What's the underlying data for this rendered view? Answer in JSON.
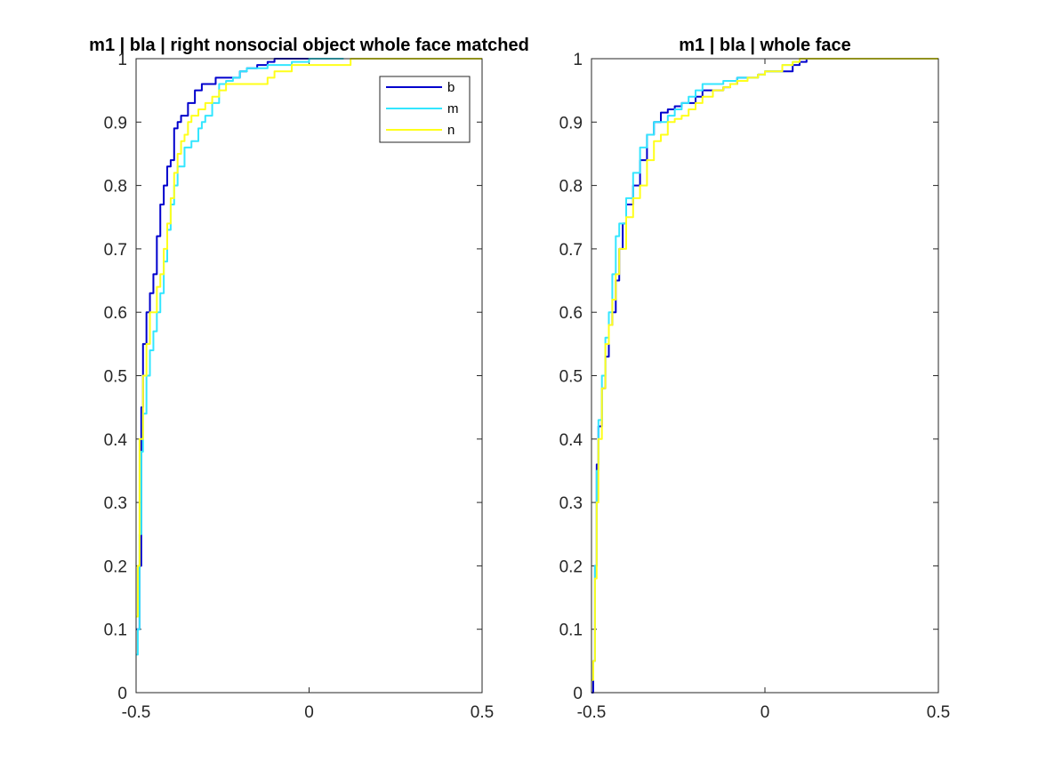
{
  "chart_data": [
    {
      "type": "line",
      "title": "m1 | bla | right nonsocial object whole face matched",
      "xlim": [
        -0.5,
        0.5
      ],
      "ylim": [
        0,
        1
      ],
      "xticks": [
        -0.5,
        0,
        0.5
      ],
      "xtick_labels": [
        "-0.5",
        "0",
        "0.5"
      ],
      "yticks": [
        0,
        0.1,
        0.2,
        0.3,
        0.4,
        0.5,
        0.6,
        0.7,
        0.8,
        0.9,
        1
      ],
      "ytick_labels": [
        "0",
        "0.1",
        "0.2",
        "0.3",
        "0.4",
        "0.5",
        "0.6",
        "0.7",
        "0.8",
        "0.9",
        "1"
      ],
      "grid": false,
      "legend": {
        "placement": "top-right",
        "entries": [
          "b",
          "m",
          "n"
        ]
      },
      "series": [
        {
          "name": "b",
          "color": "#0000cd",
          "x": [
            -0.5,
            -0.49,
            -0.485,
            -0.48,
            -0.47,
            -0.46,
            -0.45,
            -0.44,
            -0.43,
            -0.42,
            -0.41,
            -0.4,
            -0.39,
            -0.38,
            -0.37,
            -0.35,
            -0.33,
            -0.31,
            -0.29,
            -0.27,
            -0.24,
            -0.2,
            -0.18,
            -0.15,
            -0.12,
            -0.1,
            -0.05,
            0.0,
            0.02,
            0.04
          ],
          "y": [
            0.1,
            0.2,
            0.45,
            0.55,
            0.6,
            0.63,
            0.66,
            0.72,
            0.77,
            0.8,
            0.83,
            0.84,
            0.89,
            0.9,
            0.91,
            0.93,
            0.95,
            0.96,
            0.96,
            0.97,
            0.97,
            0.98,
            0.985,
            0.99,
            0.995,
            1.0,
            1.0,
            1.0,
            1.0,
            1.0
          ]
        },
        {
          "name": "m",
          "color": "#33e6ff",
          "x": [
            -0.5,
            -0.495,
            -0.49,
            -0.485,
            -0.48,
            -0.47,
            -0.46,
            -0.45,
            -0.44,
            -0.43,
            -0.42,
            -0.41,
            -0.4,
            -0.39,
            -0.38,
            -0.36,
            -0.34,
            -0.32,
            -0.31,
            -0.3,
            -0.28,
            -0.26,
            -0.24,
            -0.22,
            -0.2,
            -0.18,
            -0.15,
            -0.12,
            -0.1,
            -0.05,
            0.0,
            0.05,
            0.08,
            0.1
          ],
          "y": [
            0.06,
            0.1,
            0.25,
            0.38,
            0.44,
            0.5,
            0.54,
            0.57,
            0.6,
            0.63,
            0.68,
            0.73,
            0.77,
            0.8,
            0.83,
            0.86,
            0.87,
            0.89,
            0.9,
            0.91,
            0.93,
            0.96,
            0.965,
            0.97,
            0.98,
            0.985,
            0.985,
            0.99,
            0.99,
            0.995,
            1.0,
            1.0,
            1.0,
            1.0
          ]
        },
        {
          "name": "n",
          "color": "#ffff1a",
          "x": [
            -0.5,
            -0.495,
            -0.49,
            -0.48,
            -0.47,
            -0.46,
            -0.44,
            -0.43,
            -0.42,
            -0.41,
            -0.4,
            -0.39,
            -0.38,
            -0.37,
            -0.36,
            -0.35,
            -0.34,
            -0.32,
            -0.3,
            -0.28,
            -0.26,
            -0.24,
            -0.22,
            -0.2,
            -0.18,
            -0.15,
            -0.12,
            -0.1,
            -0.08,
            -0.05,
            0.0,
            0.05,
            0.1,
            0.12,
            0.5
          ],
          "y": [
            0.12,
            0.2,
            0.4,
            0.5,
            0.55,
            0.6,
            0.64,
            0.66,
            0.7,
            0.74,
            0.78,
            0.82,
            0.85,
            0.87,
            0.88,
            0.9,
            0.91,
            0.92,
            0.93,
            0.94,
            0.95,
            0.96,
            0.96,
            0.96,
            0.96,
            0.96,
            0.97,
            0.98,
            0.98,
            0.99,
            0.99,
            0.99,
            0.99,
            1.0,
            1.0
          ]
        }
      ]
    },
    {
      "type": "line",
      "title": "m1 | bla | whole face",
      "xlim": [
        -0.5,
        0.5
      ],
      "ylim": [
        0,
        1
      ],
      "xticks": [
        -0.5,
        0,
        0.5
      ],
      "xtick_labels": [
        "-0.5",
        "0",
        "0.5"
      ],
      "yticks": [
        0,
        0.1,
        0.2,
        0.3,
        0.4,
        0.5,
        0.6,
        0.7,
        0.8,
        0.9,
        1
      ],
      "ytick_labels": [
        "0",
        "0.1",
        "0.2",
        "0.3",
        "0.4",
        "0.5",
        "0.6",
        "0.7",
        "0.8",
        "0.9",
        "1"
      ],
      "grid": false,
      "series": [
        {
          "name": "b",
          "color": "#0000cd",
          "x": [
            -0.5,
            -0.495,
            -0.49,
            -0.485,
            -0.48,
            -0.47,
            -0.46,
            -0.45,
            -0.44,
            -0.43,
            -0.42,
            -0.41,
            -0.4,
            -0.38,
            -0.36,
            -0.34,
            -0.32,
            -0.3,
            -0.28,
            -0.26,
            -0.24,
            -0.22,
            -0.2,
            -0.18,
            -0.15,
            -0.12,
            -0.1,
            -0.08,
            -0.05,
            -0.02,
            0.0,
            0.05,
            0.08,
            0.1,
            0.12
          ],
          "y": [
            0.0,
            0.05,
            0.2,
            0.36,
            0.42,
            0.48,
            0.53,
            0.58,
            0.6,
            0.65,
            0.7,
            0.74,
            0.77,
            0.8,
            0.84,
            0.88,
            0.9,
            0.915,
            0.92,
            0.925,
            0.93,
            0.93,
            0.94,
            0.95,
            0.95,
            0.955,
            0.96,
            0.97,
            0.97,
            0.975,
            0.98,
            0.98,
            0.99,
            0.995,
            1.0
          ]
        },
        {
          "name": "m",
          "color": "#33e6ff",
          "x": [
            -0.5,
            -0.495,
            -0.49,
            -0.485,
            -0.48,
            -0.47,
            -0.46,
            -0.45,
            -0.44,
            -0.43,
            -0.42,
            -0.4,
            -0.38,
            -0.36,
            -0.34,
            -0.32,
            -0.3,
            -0.28,
            -0.26,
            -0.24,
            -0.22,
            -0.2,
            -0.18,
            -0.15,
            -0.12,
            -0.1,
            -0.08,
            -0.05,
            -0.02,
            0.0,
            0.05,
            0.08,
            0.1
          ],
          "y": [
            0.02,
            0.05,
            0.2,
            0.35,
            0.43,
            0.5,
            0.56,
            0.6,
            0.66,
            0.72,
            0.74,
            0.78,
            0.82,
            0.86,
            0.88,
            0.9,
            0.9,
            0.91,
            0.92,
            0.93,
            0.94,
            0.95,
            0.96,
            0.96,
            0.965,
            0.965,
            0.97,
            0.97,
            0.975,
            0.98,
            0.99,
            0.995,
            1.0
          ]
        },
        {
          "name": "n",
          "color": "#ffff1a",
          "x": [
            -0.5,
            -0.495,
            -0.49,
            -0.485,
            -0.48,
            -0.47,
            -0.46,
            -0.45,
            -0.44,
            -0.43,
            -0.42,
            -0.4,
            -0.38,
            -0.36,
            -0.34,
            -0.32,
            -0.3,
            -0.28,
            -0.26,
            -0.24,
            -0.22,
            -0.2,
            -0.18,
            -0.15,
            -0.12,
            -0.1,
            -0.08,
            -0.05,
            -0.02,
            0.0,
            0.05,
            0.08,
            0.1,
            0.5
          ],
          "y": [
            0.02,
            0.05,
            0.18,
            0.3,
            0.4,
            0.48,
            0.55,
            0.58,
            0.62,
            0.66,
            0.7,
            0.75,
            0.78,
            0.8,
            0.84,
            0.87,
            0.88,
            0.9,
            0.905,
            0.91,
            0.92,
            0.93,
            0.94,
            0.95,
            0.955,
            0.96,
            0.965,
            0.97,
            0.975,
            0.98,
            0.99,
            0.995,
            1.0,
            1.0
          ]
        }
      ]
    }
  ]
}
